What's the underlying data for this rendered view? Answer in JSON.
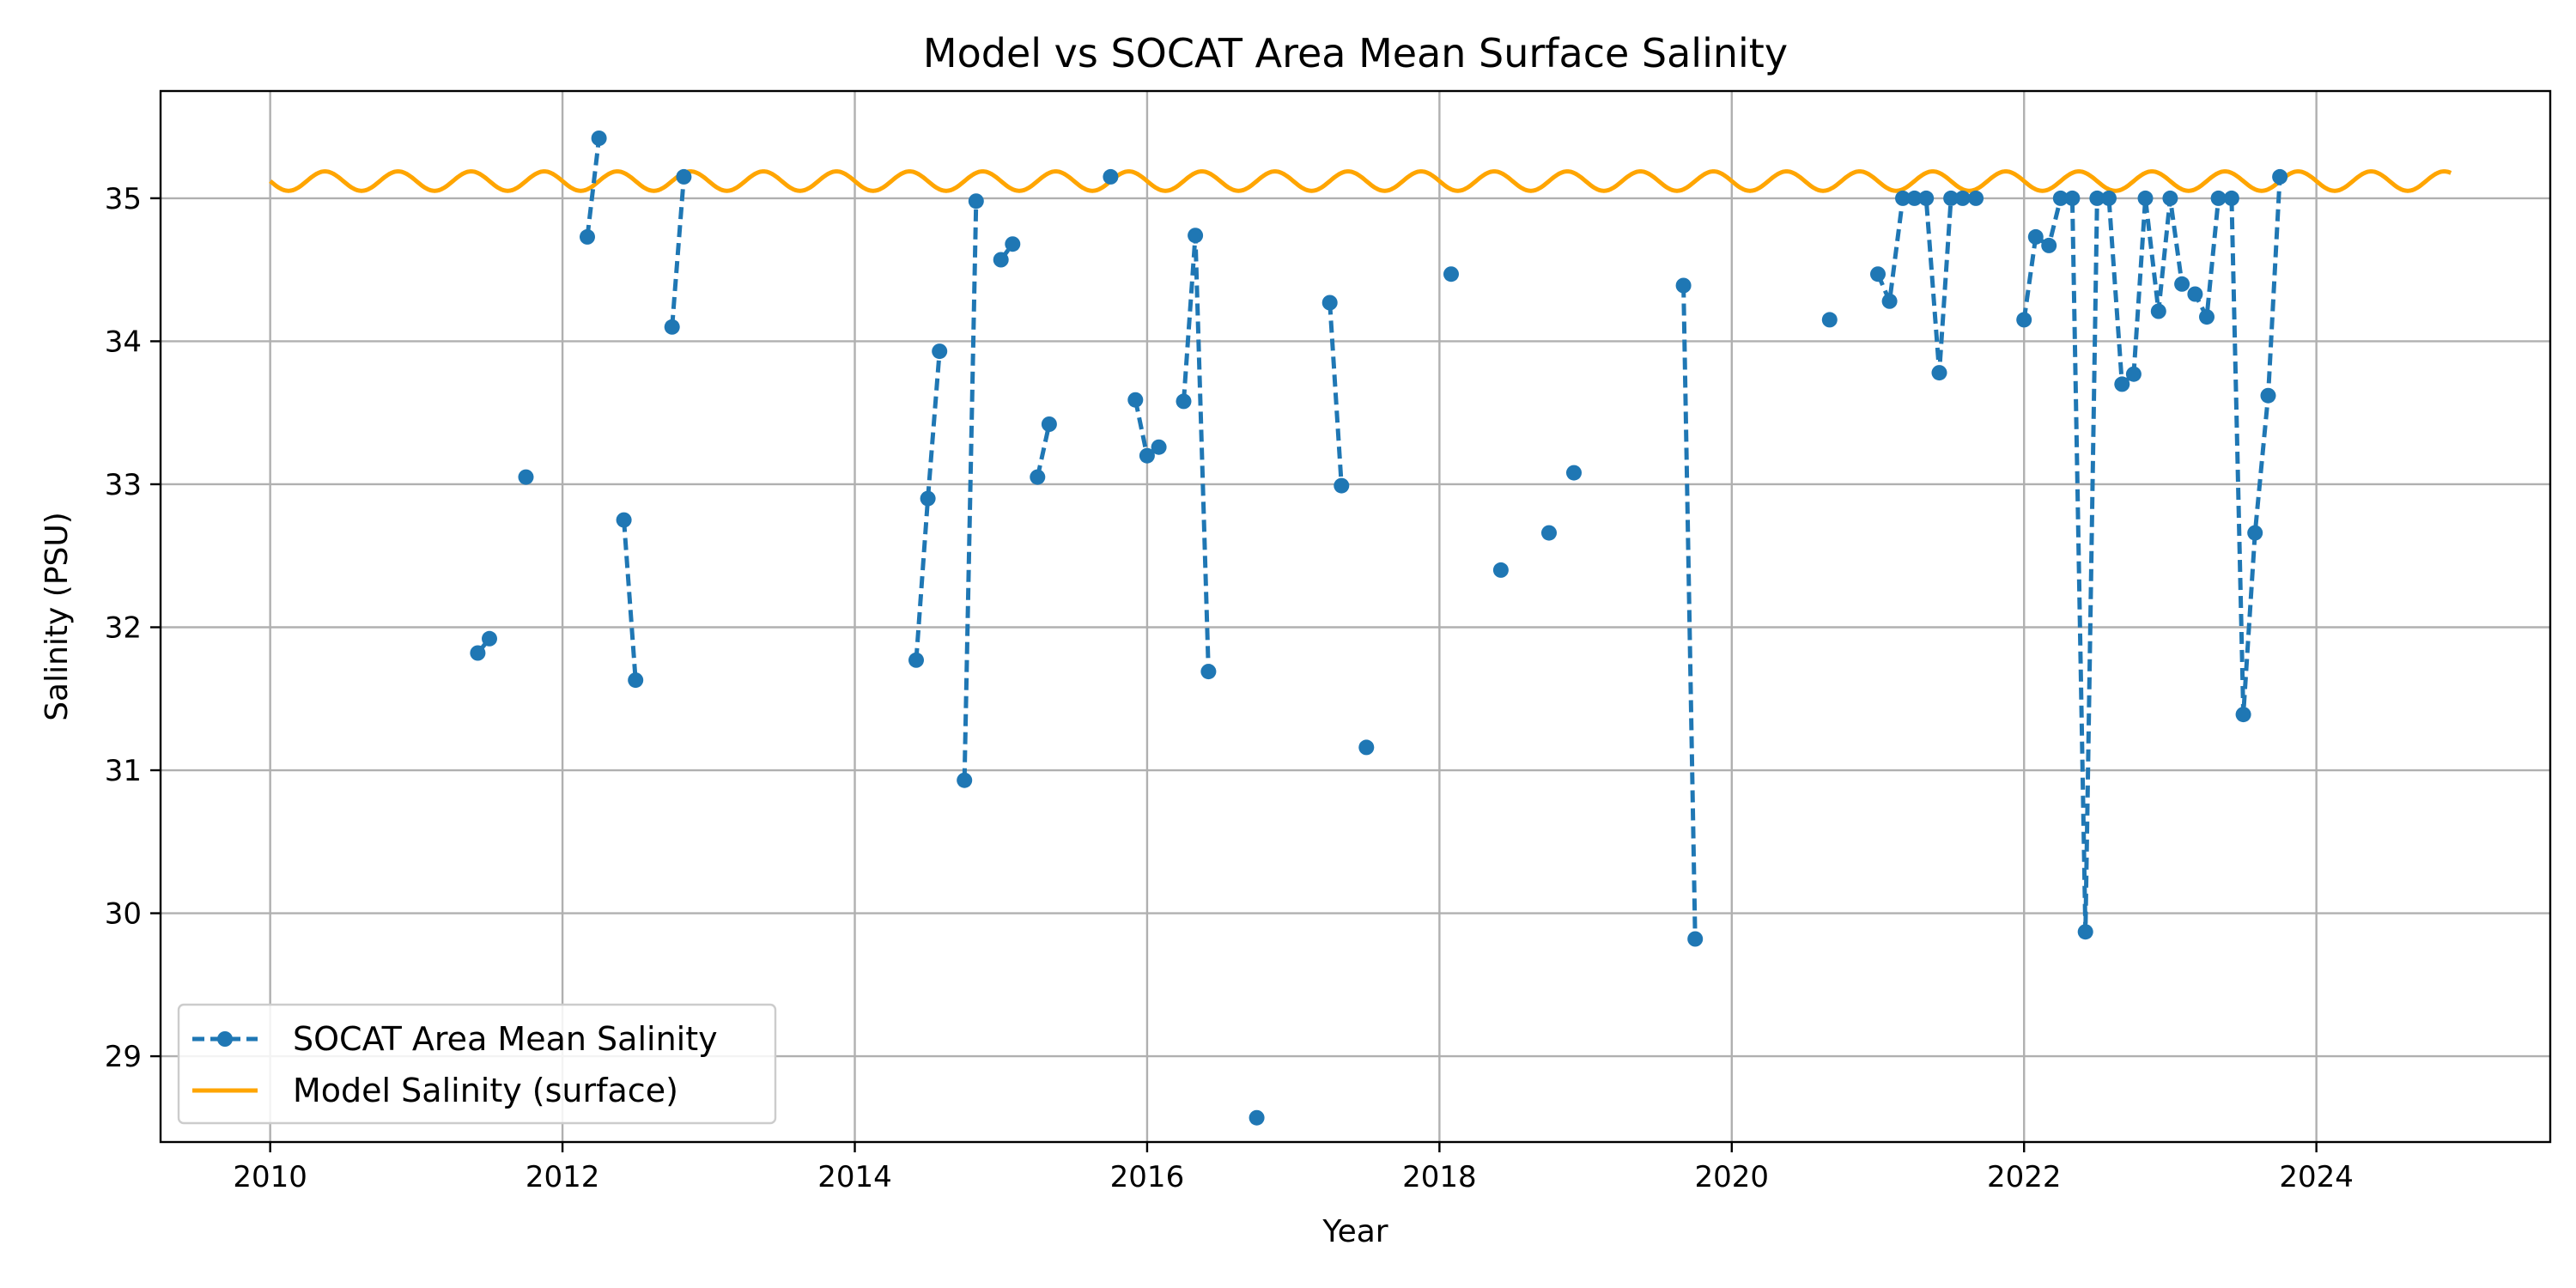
{
  "chart_data": {
    "type": "line",
    "title": "Model vs SOCAT Area Mean Surface Salinity",
    "xlabel": "Year",
    "ylabel": "Salinity (PSU)",
    "xlim": [
      2009.25,
      2025.6
    ],
    "ylim": [
      28.4,
      35.75
    ],
    "x_ticks": [
      2010,
      2012,
      2014,
      2016,
      2018,
      2020,
      2022,
      2024
    ],
    "y_ticks": [
      29,
      30,
      31,
      32,
      33,
      34,
      35
    ],
    "grid": true,
    "legend_position": "lower-left",
    "series": [
      {
        "name": "SOCAT Area Mean Salinity",
        "color": "#1f77b4",
        "style": "dashed-with-markers",
        "segments": [
          [
            [
              2011.42,
              31.82
            ],
            [
              2011.5,
              31.92
            ]
          ],
          [
            [
              2011.75,
              33.05
            ]
          ],
          [
            [
              2012.17,
              34.73
            ],
            [
              2012.25,
              35.42
            ]
          ],
          [
            [
              2012.42,
              32.75
            ],
            [
              2012.5,
              31.63
            ]
          ],
          [
            [
              2012.75,
              34.1
            ],
            [
              2012.83,
              35.15
            ]
          ],
          [
            [
              2014.42,
              31.77
            ],
            [
              2014.5,
              32.9
            ],
            [
              2014.58,
              33.93
            ]
          ],
          [
            [
              2014.75,
              30.93
            ],
            [
              2014.83,
              34.98
            ]
          ],
          [
            [
              2015.0,
              34.57
            ],
            [
              2015.08,
              34.68
            ]
          ],
          [
            [
              2015.25,
              33.05
            ],
            [
              2015.33,
              33.42
            ]
          ],
          [
            [
              2015.75,
              35.15
            ]
          ],
          [
            [
              2015.92,
              33.59
            ],
            [
              2016.0,
              33.2
            ],
            [
              2016.08,
              33.26
            ]
          ],
          [
            [
              2016.25,
              33.58
            ],
            [
              2016.33,
              34.74
            ],
            [
              2016.42,
              31.69
            ]
          ],
          [
            [
              2016.75,
              28.57
            ]
          ],
          [
            [
              2017.25,
              34.27
            ],
            [
              2017.33,
              32.99
            ]
          ],
          [
            [
              2017.5,
              31.16
            ]
          ],
          [
            [
              2018.08,
              34.47
            ]
          ],
          [
            [
              2018.42,
              32.4
            ]
          ],
          [
            [
              2018.75,
              32.66
            ]
          ],
          [
            [
              2018.92,
              33.08
            ]
          ],
          [
            [
              2019.67,
              34.39
            ],
            [
              2019.75,
              29.82
            ]
          ],
          [
            [
              2020.67,
              34.15
            ]
          ],
          [
            [
              2021.0,
              34.47
            ],
            [
              2021.08,
              34.28
            ],
            [
              2021.17,
              35.0
            ],
            [
              2021.25,
              35.0
            ],
            [
              2021.33,
              35.0
            ],
            [
              2021.42,
              33.78
            ],
            [
              2021.5,
              35.0
            ],
            [
              2021.58,
              35.0
            ],
            [
              2021.67,
              35.0
            ]
          ],
          [
            [
              2022.0,
              34.15
            ],
            [
              2022.08,
              34.73
            ],
            [
              2022.17,
              34.67
            ],
            [
              2022.25,
              35.0
            ],
            [
              2022.33,
              35.0
            ],
            [
              2022.42,
              29.87
            ],
            [
              2022.5,
              35.0
            ],
            [
              2022.58,
              35.0
            ],
            [
              2022.67,
              33.7
            ],
            [
              2022.75,
              33.77
            ],
            [
              2022.83,
              35.0
            ],
            [
              2022.92,
              34.21
            ],
            [
              2023.0,
              35.0
            ],
            [
              2023.08,
              34.4
            ],
            [
              2023.17,
              34.33
            ],
            [
              2023.25,
              34.17
            ],
            [
              2023.33,
              35.0
            ],
            [
              2023.42,
              35.0
            ],
            [
              2023.5,
              31.39
            ],
            [
              2023.58,
              32.66
            ],
            [
              2023.67,
              33.62
            ],
            [
              2023.75,
              35.15
            ]
          ]
        ]
      },
      {
        "name": "Model Salinity (surface)",
        "color": "#ffa500",
        "style": "solid",
        "x_start": 2010.0,
        "x_end": 2024.92,
        "mean": 35.12,
        "amplitude": 0.068,
        "cycles_per_year": 2,
        "phase_year": 2010.0
      }
    ]
  }
}
